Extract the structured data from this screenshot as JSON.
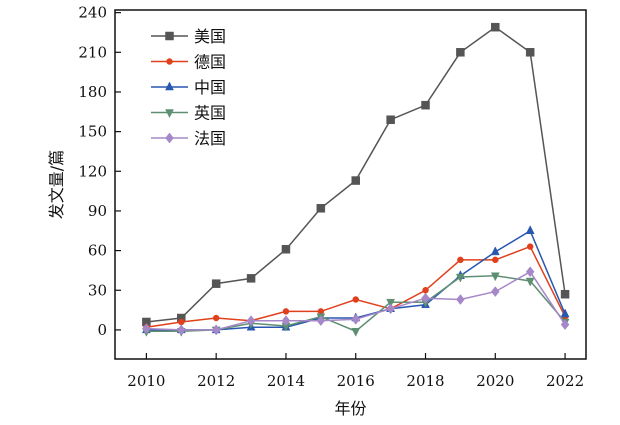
{
  "chart_data": {
    "type": "line",
    "xlabel": "年份",
    "ylabel": "发文量/篇",
    "xlim": [
      2009.1,
      2022.6
    ],
    "ylim": [
      -22,
      242
    ],
    "xticks": [
      2010,
      2012,
      2014,
      2016,
      2018,
      2020,
      2022
    ],
    "yticks": [
      0,
      30,
      60,
      90,
      120,
      150,
      180,
      210,
      240
    ],
    "legend_position": "top-left",
    "grid": false,
    "x": [
      2010,
      2011,
      2012,
      2013,
      2014,
      2015,
      2016,
      2017,
      2018,
      2019,
      2020,
      2021,
      2022
    ],
    "series": [
      {
        "name": "美国",
        "color": "#555555",
        "marker": "square",
        "values": [
          6,
          9,
          35,
          39,
          61,
          92,
          113,
          159,
          170,
          210,
          229,
          210,
          27
        ]
      },
      {
        "name": "德国",
        "color": "#e0401c",
        "marker": "circle",
        "values": [
          2,
          6,
          9,
          7,
          14,
          14,
          23,
          16,
          30,
          53,
          53,
          63,
          10
        ]
      },
      {
        "name": "中国",
        "color": "#2857b0",
        "marker": "triangle-up",
        "values": [
          0,
          0,
          0,
          2,
          2,
          9,
          9,
          16,
          19,
          41,
          59,
          75,
          12
        ]
      },
      {
        "name": "英国",
        "color": "#5f8f73",
        "marker": "triangle-down",
        "values": [
          -1,
          -1,
          0,
          5,
          3,
          10,
          -1,
          21,
          21,
          40,
          41,
          37,
          6
        ]
      },
      {
        "name": "法国",
        "color": "#a688c9",
        "marker": "diamond",
        "values": [
          1,
          0,
          0,
          7,
          7,
          7,
          8,
          16,
          24,
          23,
          29,
          44,
          4
        ]
      }
    ]
  }
}
